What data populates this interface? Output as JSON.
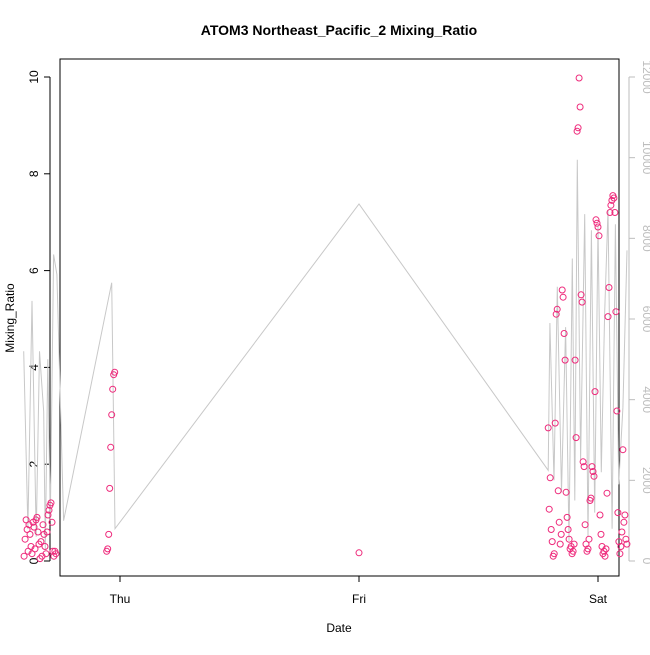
{
  "chart_data": {
    "type": "scatter",
    "title": "ATOM3 Northeast_Pacific_2 Mixing_Ratio",
    "xlabel": "Date",
    "ylabel": "Mixing_Ratio",
    "x_ticks": [
      "Thu",
      "Fri",
      "Sat"
    ],
    "xlim": [
      "Wed 06:00",
      "Sat 02:00"
    ],
    "ylim": [
      0,
      10
    ],
    "y_ticks": [
      0,
      2,
      4,
      6,
      8,
      10
    ],
    "y2lim": [
      0,
      12000
    ],
    "y2_ticks": [
      0,
      2000,
      4000,
      6000,
      8000,
      10000,
      12000
    ],
    "grid": false,
    "legend": "none",
    "colors": {
      "points": "#ee2a7b",
      "line": "#c8c8c8",
      "right_axis": "#bdbdbd",
      "frame": "#000000"
    },
    "series": [
      {
        "kind": "points",
        "axis": "left",
        "points": [
          [
            "Wed 14:22",
            0.1
          ],
          [
            "Wed 14:28",
            0.45
          ],
          [
            "Wed 14:34",
            0.85
          ],
          [
            "Wed 14:40",
            0.65
          ],
          [
            "Wed 14:46",
            0.2
          ],
          [
            "Wed 14:52",
            0.75
          ],
          [
            "Wed 14:58",
            0.55
          ],
          [
            "Wed 15:04",
            0.3
          ],
          [
            "Wed 15:10",
            0.15
          ],
          [
            "Wed 15:16",
            0.8
          ],
          [
            "Wed 15:22",
            0.7
          ],
          [
            "Wed 15:28",
            0.25
          ],
          [
            "Wed 15:34",
            0.85
          ],
          [
            "Wed 15:40",
            0.9
          ],
          [
            "Wed 15:46",
            0.6
          ],
          [
            "Wed 15:52",
            0.35
          ],
          [
            "Wed 15:58",
            0.05
          ],
          [
            "Wed 16:04",
            0.4
          ],
          [
            "Wed 16:10",
            0.1
          ],
          [
            "Wed 16:16",
            0.75
          ],
          [
            "Wed 16:22",
            0.55
          ],
          [
            "Wed 16:28",
            0.3
          ],
          [
            "Wed 16:34",
            0.15
          ],
          [
            "Wed 16:40",
            0.6
          ],
          [
            "Wed 16:46",
            0.95
          ],
          [
            "Wed 16:52",
            1.05
          ],
          [
            "Wed 16:58",
            1.15
          ],
          [
            "Wed 17:04",
            1.2
          ],
          [
            "Wed 17:10",
            0.8
          ],
          [
            "Wed 17:16",
            0.2
          ],
          [
            "Wed 17:22",
            0.1
          ],
          [
            "Wed 17:28",
            0.2
          ],
          [
            "Wed 17:34",
            0.15
          ],
          [
            "Wed 22:40",
            0.2
          ],
          [
            "Wed 22:46",
            0.25
          ],
          [
            "Wed 22:52",
            0.55
          ],
          [
            "Wed 22:58",
            1.5
          ],
          [
            "Wed 23:04",
            2.35
          ],
          [
            "Wed 23:10",
            3.02
          ],
          [
            "Wed 23:16",
            3.55
          ],
          [
            "Wed 23:22",
            3.85
          ],
          [
            "Wed 23:28",
            3.9
          ],
          [
            "Fri 00:00",
            0.17
          ],
          [
            "Fri 19:00",
            2.75
          ],
          [
            "Fri 19:06",
            1.07
          ],
          [
            "Fri 19:12",
            1.72
          ],
          [
            "Fri 19:18",
            0.65
          ],
          [
            "Fri 19:24",
            0.4
          ],
          [
            "Fri 19:30",
            0.1
          ],
          [
            "Fri 19:36",
            0.15
          ],
          [
            "Fri 19:42",
            2.85
          ],
          [
            "Fri 19:48",
            5.1
          ],
          [
            "Fri 19:54",
            5.2
          ],
          [
            "Fri 20:00",
            1.45
          ],
          [
            "Fri 20:06",
            0.8
          ],
          [
            "Fri 20:12",
            0.35
          ],
          [
            "Fri 20:18",
            0.55
          ],
          [
            "Fri 20:24",
            5.6
          ],
          [
            "Fri 20:30",
            5.45
          ],
          [
            "Fri 20:36",
            4.7
          ],
          [
            "Fri 20:42",
            4.15
          ],
          [
            "Fri 20:48",
            1.42
          ],
          [
            "Fri 20:54",
            0.9
          ],
          [
            "Fri 21:00",
            0.65
          ],
          [
            "Fri 21:06",
            0.45
          ],
          [
            "Fri 21:12",
            0.25
          ],
          [
            "Fri 21:18",
            0.3
          ],
          [
            "Fri 21:24",
            0.15
          ],
          [
            "Fri 21:30",
            0.2
          ],
          [
            "Fri 21:36",
            0.35
          ],
          [
            "Fri 21:42",
            4.15
          ],
          [
            "Fri 21:48",
            2.55
          ],
          [
            "Fri 21:54",
            8.88
          ],
          [
            "Fri 22:00",
            8.95
          ],
          [
            "Fri 22:06",
            9.98
          ],
          [
            "Fri 22:12",
            9.38
          ],
          [
            "Fri 22:18",
            5.5
          ],
          [
            "Fri 22:24",
            5.35
          ],
          [
            "Fri 22:30",
            2.05
          ],
          [
            "Fri 22:36",
            1.95
          ],
          [
            "Fri 22:42",
            0.75
          ],
          [
            "Fri 22:48",
            0.35
          ],
          [
            "Fri 22:54",
            0.2
          ],
          [
            "Fri 23:00",
            0.25
          ],
          [
            "Fri 23:06",
            0.45
          ],
          [
            "Fri 23:12",
            1.25
          ],
          [
            "Fri 23:18",
            1.3
          ],
          [
            "Fri 23:24",
            1.95
          ],
          [
            "Fri 23:30",
            1.85
          ],
          [
            "Fri 23:36",
            1.75
          ],
          [
            "Fri 23:42",
            3.5
          ],
          [
            "Fri 23:48",
            7.05
          ],
          [
            "Fri 23:54",
            6.98
          ],
          [
            "Sat 00:00",
            6.9
          ],
          [
            "Sat 00:06",
            6.72
          ],
          [
            "Sat 00:12",
            0.95
          ],
          [
            "Sat 00:18",
            0.55
          ],
          [
            "Sat 00:24",
            0.3
          ],
          [
            "Sat 00:30",
            0.15
          ],
          [
            "Sat 00:36",
            0.2
          ],
          [
            "Sat 00:42",
            0.1
          ],
          [
            "Sat 00:48",
            0.25
          ],
          [
            "Sat 00:54",
            1.4
          ],
          [
            "Sat 01:00",
            5.05
          ],
          [
            "Sat 01:06",
            5.65
          ],
          [
            "Sat 01:12",
            7.2
          ],
          [
            "Sat 01:18",
            7.35
          ],
          [
            "Sat 01:24",
            7.45
          ],
          [
            "Sat 01:30",
            7.55
          ],
          [
            "Sat 01:36",
            7.5
          ],
          [
            "Sat 01:42",
            7.2
          ],
          [
            "Sat 01:48",
            5.15
          ],
          [
            "Sat 01:54",
            3.1
          ],
          [
            "Sat 02:00",
            1.0
          ],
          [
            "Sat 02:06",
            0.4
          ],
          [
            "Sat 02:12",
            0.15
          ],
          [
            "Sat 02:18",
            0.3
          ],
          [
            "Sat 02:24",
            0.6
          ],
          [
            "Sat 02:30",
            2.3
          ],
          [
            "Sat 02:36",
            0.8
          ],
          [
            "Sat 02:42",
            0.95
          ],
          [
            "Sat 02:48",
            0.45
          ],
          [
            "Sat 02:54",
            0.35
          ]
        ]
      },
      {
        "kind": "line",
        "axis": "right",
        "points": [
          [
            "Wed 14:20",
            5200
          ],
          [
            "Wed 14:45",
            800
          ],
          [
            "Wed 15:10",
            6450
          ],
          [
            "Wed 15:35",
            600
          ],
          [
            "Wed 15:55",
            5200
          ],
          [
            "Wed 16:20",
            3700
          ],
          [
            "Wed 16:30",
            300
          ],
          [
            "Wed 16:45",
            5000
          ],
          [
            "Wed 17:00",
            1000
          ],
          [
            "Wed 17:20",
            7600
          ],
          [
            "Wed 17:40",
            7100
          ],
          [
            "Wed 18:20",
            1000
          ],
          [
            "Wed 23:10",
            6900
          ],
          [
            "Wed 23:30",
            800
          ],
          [
            "Fri 00:00",
            8850
          ],
          [
            "Fri 19:00",
            2250
          ],
          [
            "Fri 19:10",
            5900
          ],
          [
            "Fri 19:35",
            2000
          ],
          [
            "Fri 19:55",
            6800
          ],
          [
            "Fri 20:20",
            1700
          ],
          [
            "Fri 20:45",
            5800
          ],
          [
            "Fri 21:05",
            500
          ],
          [
            "Fri 21:25",
            7500
          ],
          [
            "Fri 21:40",
            1500
          ],
          [
            "Fri 21:55",
            9950
          ],
          [
            "Fri 22:15",
            2500
          ],
          [
            "Fri 22:40",
            8600
          ],
          [
            "Fri 23:00",
            600
          ],
          [
            "Fri 23:20",
            8200
          ],
          [
            "Fri 23:40",
            1200
          ],
          [
            "Sat 00:00",
            8300
          ],
          [
            "Sat 00:20",
            2200
          ],
          [
            "Sat 00:40",
            6100
          ],
          [
            "Sat 01:00",
            8700
          ],
          [
            "Sat 01:25",
            800
          ],
          [
            "Sat 01:45",
            8350
          ],
          [
            "Sat 02:05",
            1900
          ],
          [
            "Sat 02:30",
            3800
          ],
          [
            "Sat 02:55",
            7700
          ]
        ]
      }
    ]
  }
}
